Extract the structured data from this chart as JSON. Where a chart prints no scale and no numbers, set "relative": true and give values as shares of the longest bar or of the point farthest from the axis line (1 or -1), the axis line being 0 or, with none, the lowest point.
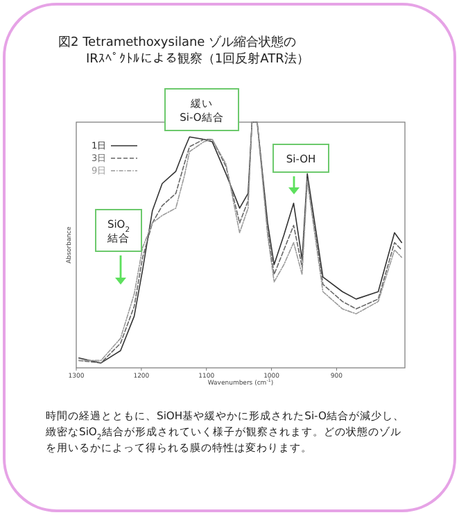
{
  "chart_data": {
    "type": "line",
    "title": "図2  Tetramethoxysilane ゾル縮合状態の\nIRｽﾍﾟｸﾄﾙによる観察（1回反射ATR法）",
    "xlabel": "Wavenumbers (cm$^{-1}$)",
    "ylabel": "Absorbance",
    "relative": true,
    "x": [
      1296,
      1262,
      1232,
      1211,
      1198,
      1183,
      1168,
      1147,
      1134,
      1126,
      1104,
      1091,
      1070,
      1049,
      1036,
      1030,
      1022,
      1006,
      996,
      981,
      966,
      953,
      945,
      921,
      891,
      870,
      836,
      811,
      800
    ],
    "xlim": [
      1300,
      795
    ],
    "xticks": [
      1300,
      1200,
      1100,
      1000,
      900
    ],
    "series": [
      {
        "name": "1日",
        "color": "#333333",
        "line_style": "solid",
        "values": [
          0.04,
          0.02,
          0.07,
          0.21,
          0.4,
          0.64,
          0.75,
          0.8,
          0.89,
          0.94,
          0.93,
          0.92,
          0.79,
          0.65,
          0.71,
          1.0,
          1.0,
          0.59,
          0.42,
          0.54,
          0.67,
          0.44,
          0.79,
          0.37,
          0.31,
          0.28,
          0.31,
          0.55,
          0.51
        ]
      },
      {
        "name": "3日",
        "color": "#666666",
        "line_style": "dashed",
        "values": [
          0.03,
          0.02,
          0.1,
          0.25,
          0.45,
          0.59,
          0.66,
          0.71,
          0.83,
          0.9,
          0.93,
          0.93,
          0.82,
          0.59,
          0.68,
          1.0,
          1.0,
          0.56,
          0.38,
          0.48,
          0.58,
          0.41,
          0.77,
          0.34,
          0.27,
          0.24,
          0.28,
          0.51,
          0.48
        ]
      },
      {
        "name": "9日",
        "color": "#999999",
        "line_style": "dotted",
        "values": [
          0.03,
          0.03,
          0.12,
          0.3,
          0.49,
          0.59,
          0.62,
          0.65,
          0.78,
          0.88,
          0.92,
          0.93,
          0.83,
          0.55,
          0.65,
          1.0,
          1.0,
          0.54,
          0.35,
          0.42,
          0.51,
          0.38,
          0.76,
          0.31,
          0.24,
          0.22,
          0.27,
          0.48,
          0.45
        ]
      }
    ],
    "legend": "top left",
    "annotations": [
      "緩い\nSi-O結合",
      "SiO$_{2}$\n結合",
      "Si-OH",
      "時間の経過とともに、SiOH基や緩やかに形成されたSi-O結合が減少し、緻密なSiO$_{2}$結合が形成されていく様子が観察されます。どの状態のゾルを用いるかによって得られる膜の特性は変わります。"
    ]
  }
}
